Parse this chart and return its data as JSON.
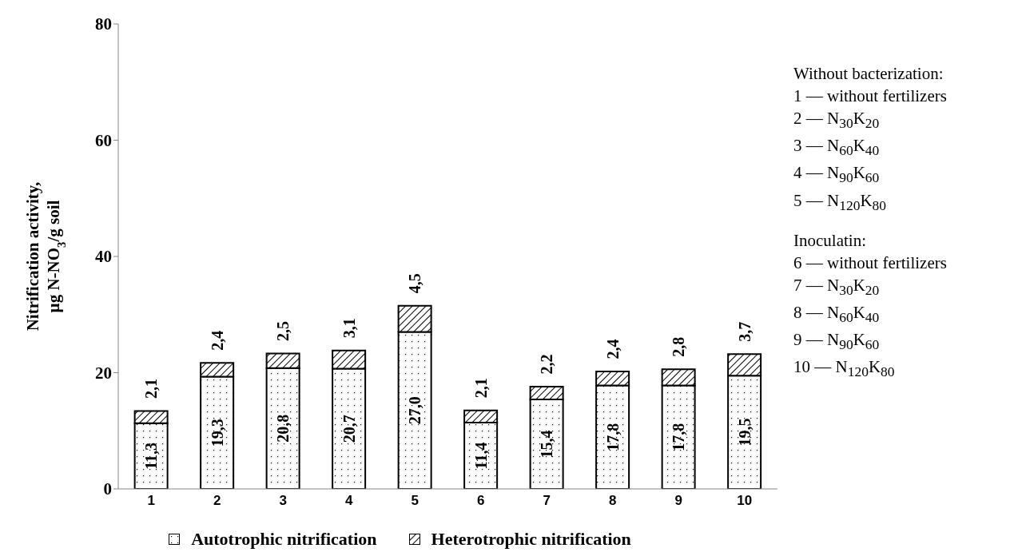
{
  "chart_data": {
    "type": "bar",
    "stacked": true,
    "ylabel": "Nitrification activity, µg N-NO$_{3}$/g soil",
    "categories": [
      "1",
      "2",
      "3",
      "4",
      "5",
      "6",
      "7",
      "8",
      "9",
      "10"
    ],
    "series": [
      {
        "name": "Autotrophic nitrification",
        "color": "#000000",
        "values": [
          11.3,
          19.3,
          20.8,
          20.7,
          27.0,
          11.4,
          15.4,
          17.8,
          17.8,
          19.5
        ],
        "value_labels": [
          "11,3",
          "19,3",
          "20,8",
          "20,7",
          "27,0",
          "11,4",
          "15,4",
          "17,8",
          "17,8",
          "19,5"
        ]
      },
      {
        "name": "Heterotrophic nitrification",
        "color": "#000000",
        "values": [
          2.1,
          2.4,
          2.5,
          3.1,
          4.5,
          2.1,
          2.2,
          2.4,
          2.8,
          3.7
        ],
        "value_labels": [
          "2,1",
          "2,4",
          "2,5",
          "3,1",
          "4,5",
          "2,1",
          "2,2",
          "2,4",
          "2,8",
          "3,7"
        ]
      }
    ],
    "ylim": [
      0,
      80
    ],
    "yticks": [
      0,
      20,
      40,
      60,
      80
    ],
    "legend": "bottom",
    "annotations": [
      "Without bacterization:",
      "1 — without fertilizers",
      "2 — N$_{30}$K$_{20}$",
      "3 — N$_{60}$K$_{40}$",
      "4 — N$_{90}$K$_{60}$",
      "5 — N$_{120}$K$_{80}$",
      "Inoculatin:",
      "6 — without fertilizers",
      "7 — N$_{30}$K$_{20}$",
      "8 — N$_{60}$K$_{40}$",
      "9 — N$_{90}$K$_{60}$",
      "10 — N$_{120}$K$_{80}$"
    ]
  }
}
